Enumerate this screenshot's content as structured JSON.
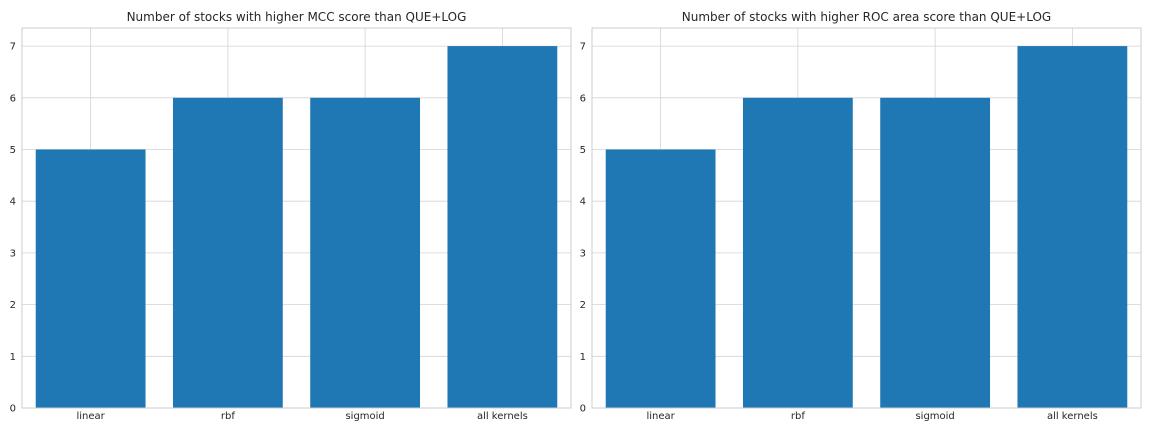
{
  "chart_data": [
    {
      "type": "bar",
      "title": "Number of stocks with higher MCC score than QUE+LOG",
      "categories": [
        "linear",
        "rbf",
        "sigmoid",
        "all kernels"
      ],
      "values": [
        5,
        6,
        6,
        7
      ],
      "xlabel": "",
      "ylabel": "",
      "ylim": [
        0,
        7.35
      ],
      "yticks": [
        0,
        1,
        2,
        3,
        4,
        5,
        6,
        7
      ],
      "grid": true,
      "bar_color": "#1f77b4"
    },
    {
      "type": "bar",
      "title": "Number of stocks with higher ROC area score than QUE+LOG",
      "categories": [
        "linear",
        "rbf",
        "sigmoid",
        "all kernels"
      ],
      "values": [
        5,
        6,
        6,
        7
      ],
      "xlabel": "",
      "ylabel": "",
      "ylim": [
        0,
        7.35
      ],
      "yticks": [
        0,
        1,
        2,
        3,
        4,
        5,
        6,
        7
      ],
      "grid": true,
      "bar_color": "#1f77b4"
    }
  ]
}
